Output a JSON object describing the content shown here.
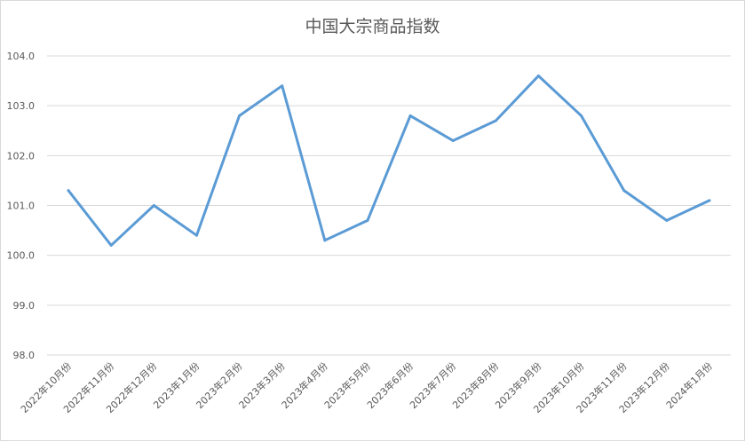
{
  "chart_data": {
    "type": "line",
    "title": "中国大宗商品指数",
    "xlabel": "",
    "ylabel": "",
    "categories": [
      "2022年10月份",
      "2022年11月份",
      "2022年12月份",
      "2023年1月份",
      "2023年2月份",
      "2023年3月份",
      "2023年4月份",
      "2023年5月份",
      "2023年6月份",
      "2023年7月份",
      "2023年8月份",
      "2023年9月份",
      "2023年10月份",
      "2023年11月份",
      "2023年12月份",
      "2024年1月份"
    ],
    "values": [
      101.3,
      100.2,
      101.0,
      100.4,
      102.8,
      103.4,
      100.3,
      100.7,
      102.8,
      102.3,
      102.7,
      103.6,
      102.8,
      101.3,
      100.7,
      101.1
    ],
    "ylim": [
      98.0,
      104.0
    ],
    "yticks": [
      "98.0",
      "99.0",
      "100.0",
      "101.0",
      "102.0",
      "103.0",
      "104.0"
    ],
    "grid": true,
    "legend": "none",
    "line_color": "#5b9bd5"
  }
}
